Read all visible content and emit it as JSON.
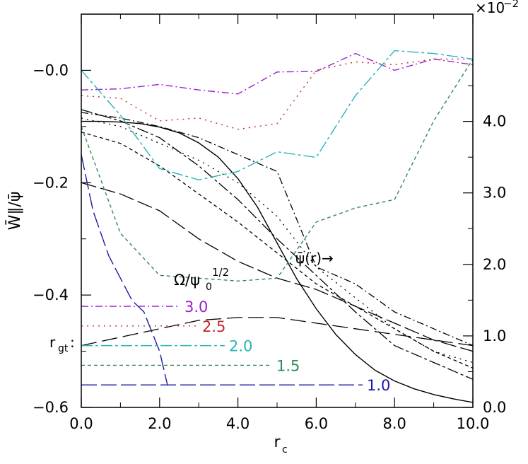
{
  "chart_data": {
    "type": "line",
    "title": "",
    "xlabel_main": "r",
    "xlabel_sub": "c",
    "ylabel_left": "W̄∥/ψ̄",
    "ylabel_right_exponent_base": "×10",
    "ylabel_right_exponent_power": "−2",
    "xlim": [
      0,
      10
    ],
    "ylim_left": [
      -0.6,
      0.1
    ],
    "ylim_right": [
      0,
      5.5
    ],
    "x_ticks": [
      {
        "value": 0,
        "label": "0.0"
      },
      {
        "value": 2,
        "label": "2.0"
      },
      {
        "value": 4,
        "label": "4.0"
      },
      {
        "value": 6,
        "label": "6.0"
      },
      {
        "value": 8,
        "label": "8.0"
      },
      {
        "value": 10,
        "label": "10.0"
      }
    ],
    "y_left_ticks": [
      {
        "value": 0.0,
        "label": "−0.0"
      },
      {
        "value": -0.2,
        "label": "−0.2"
      },
      {
        "value": -0.4,
        "label": "−0.4"
      },
      {
        "value": -0.6,
        "label": "−0.6"
      }
    ],
    "y_right_ticks": [
      {
        "value": 0.0,
        "label": "0.0"
      },
      {
        "value": 1.0,
        "label": "1.0"
      },
      {
        "value": 2.0,
        "label": "2.0"
      },
      {
        "value": 3.0,
        "label": "3.0"
      },
      {
        "value": 4.0,
        "label": "4.0"
      }
    ],
    "grid": false,
    "legend_title_omega": "Ω/ψ",
    "legend_title_sub": "0",
    "legend_title_sup": "1/2",
    "legend_prefix": "r",
    "legend_prefix_sub": "gt",
    "legend_prefix_colon": ":",
    "psi_annotation": "ψ̄(r)→",
    "series": [
      {
        "name": "3.0",
        "color": "#9b1fcf",
        "dash": "10,4,2,4",
        "legend_y": -0.42,
        "psi_x": [
          0,
          1,
          2,
          3,
          4,
          5,
          6,
          7,
          8,
          9,
          10
        ],
        "psi_y": [
          -0.035,
          -0.033,
          -0.025,
          -0.035,
          -0.042,
          -0.003,
          -0.002,
          0.03,
          0.0,
          0.02,
          0.01
        ],
        "rgt_x": [
          0,
          1,
          2,
          3,
          4,
          5,
          6,
          7,
          8,
          9,
          10
        ],
        "rgt_y": [
          -0.075,
          -0.085,
          -0.1,
          -0.12,
          -0.15,
          -0.18,
          -0.35,
          -0.38,
          -0.43,
          -0.46,
          -0.49
        ]
      },
      {
        "name": "2.5",
        "color": "#c0282c",
        "dash": "2,6",
        "legend_y": -0.455,
        "psi_x": [
          0,
          1,
          2,
          3,
          4,
          5,
          6,
          7,
          8,
          9,
          10
        ],
        "psi_y": [
          -0.045,
          -0.05,
          -0.09,
          -0.085,
          -0.105,
          -0.095,
          0.0,
          0.015,
          0.01,
          0.02,
          0.02
        ],
        "rgt_x": [
          0,
          1,
          2,
          3,
          4,
          5,
          6,
          7,
          8,
          9,
          10
        ],
        "rgt_y": [
          -0.085,
          -0.1,
          -0.13,
          -0.16,
          -0.2,
          -0.26,
          -0.35,
          -0.405,
          -0.46,
          -0.5,
          -0.52
        ]
      },
      {
        "name": "2.0",
        "color": "#2ab3b8",
        "dash": "16,4,4,4",
        "legend_y": -0.49,
        "psi_x": [
          0,
          1,
          2,
          3,
          4,
          5,
          6,
          7,
          8,
          9,
          10
        ],
        "psi_y": [
          0.0,
          -0.08,
          -0.175,
          -0.195,
          -0.18,
          -0.145,
          -0.155,
          -0.045,
          0.035,
          0.03,
          0.02
        ],
        "rgt_x": [
          0,
          1,
          2,
          3,
          4,
          5,
          6,
          7,
          8,
          9,
          10
        ],
        "rgt_y": [
          -0.07,
          -0.09,
          -0.12,
          -0.17,
          -0.23,
          -0.3,
          -0.365,
          -0.43,
          -0.49,
          -0.52,
          -0.55
        ]
      },
      {
        "name": "1.5",
        "color": "#2e8b57",
        "dash": "5,4",
        "legend_y": -0.525,
        "psi_x": [
          0,
          1,
          2,
          3,
          4,
          5,
          6,
          7,
          8,
          9,
          10
        ],
        "psi_y": [
          -0.1,
          -0.29,
          -0.365,
          -0.37,
          -0.375,
          -0.37,
          -0.27,
          -0.245,
          -0.23,
          -0.09,
          0.02
        ],
        "rgt_x": [
          0,
          1,
          2,
          3,
          4,
          5,
          6,
          7,
          8,
          9,
          10
        ],
        "rgt_y": [
          -0.11,
          -0.13,
          -0.17,
          -0.22,
          -0.27,
          -0.325,
          -0.38,
          -0.42,
          -0.46,
          -0.5,
          -0.53
        ]
      },
      {
        "name": "1.0",
        "color": "#1a1aa8",
        "dash": "22,6",
        "legend_y": -0.56,
        "psi_x": [
          0,
          0.3,
          0.7,
          1.0,
          1.3,
          1.6,
          2.0,
          2.2
        ],
        "psi_y": [
          -0.15,
          -0.25,
          -0.33,
          -0.37,
          -0.41,
          -0.43,
          -0.5,
          -0.56
        ],
        "rgt_x": [
          0,
          1,
          2,
          3,
          4,
          5,
          6,
          7,
          8,
          9,
          10
        ],
        "rgt_y": [
          -0.2,
          -0.22,
          -0.25,
          -0.3,
          -0.34,
          -0.37,
          -0.39,
          -0.42,
          -0.45,
          -0.48,
          -0.5
        ]
      }
    ],
    "extra_curve": {
      "color": "#000000",
      "dash": "22,8",
      "x": [
        0,
        1,
        2,
        3,
        4,
        5,
        6,
        7,
        8,
        9,
        10
      ],
      "y": [
        -0.49,
        -0.475,
        -0.46,
        -0.445,
        -0.44,
        -0.44,
        -0.45,
        -0.46,
        -0.47,
        -0.48,
        -0.49
      ]
    },
    "psi_curve": {
      "color": "#000000",
      "x": [
        0,
        0.5,
        1,
        1.5,
        2,
        2.5,
        3,
        3.5,
        4,
        4.5,
        5,
        5.5,
        6,
        6.5,
        7,
        7.5,
        8,
        8.5,
        9,
        9.5,
        10
      ],
      "y": [
        4.0,
        4.0,
        3.99,
        3.97,
        3.92,
        3.84,
        3.7,
        3.5,
        3.2,
        2.8,
        2.3,
        1.8,
        1.38,
        1.02,
        0.74,
        0.52,
        0.37,
        0.26,
        0.18,
        0.12,
        0.07
      ]
    }
  }
}
